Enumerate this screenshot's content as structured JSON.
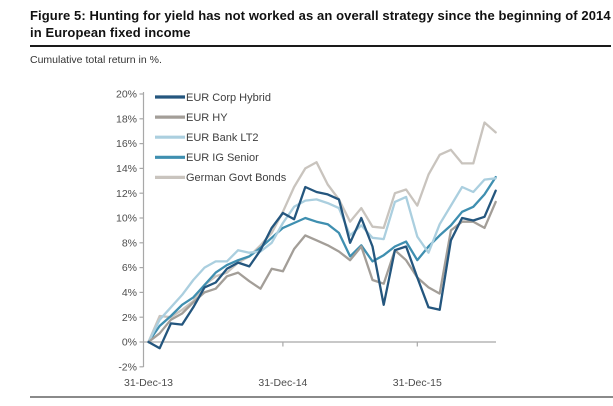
{
  "figure": {
    "title": "Figure 5: Hunting for yield has not worked as an overall strategy since the beginning of 2014 in European fixed income",
    "subtitle": "Cumulative total return in %."
  },
  "chart_data": {
    "type": "line",
    "title": "",
    "xlabel": "",
    "ylabel": "Cumulative total return in %",
    "x_unit": "months since 31-Dec-13, one value per month",
    "x_axis": {
      "tick_labels": [
        "31-Dec-13",
        "31-Dec-14",
        "31-Dec-15"
      ],
      "tick_indices": [
        0,
        12,
        24
      ]
    },
    "y_axis": {
      "ylim": [
        -2,
        20
      ],
      "tick_step": 2,
      "tick_values": [
        20,
        18,
        16,
        14,
        12,
        10,
        8,
        6,
        4,
        2,
        0,
        -2
      ],
      "tick_labels": [
        "20%",
        "18%",
        "16%",
        "14%",
        "12%",
        "10%",
        "8%",
        "6%",
        "4%",
        "2%",
        "0%",
        "-2%"
      ]
    },
    "grid": false,
    "legend_position": "top-left",
    "series": [
      {
        "name": "EUR Corp Hybrid",
        "color": "#24567e",
        "values": [
          0,
          -0.5,
          1.5,
          1.4,
          2.8,
          4.4,
          4.8,
          5.9,
          6.4,
          6.1,
          7.4,
          9.2,
          10.4,
          9.9,
          12.5,
          12.1,
          11.9,
          11.5,
          8.0,
          10.0,
          7.7,
          3.0,
          7.4,
          7.7,
          5.2,
          2.8,
          2.6,
          8.2,
          10.0,
          9.8,
          10.1,
          12.2
        ]
      },
      {
        "name": "EUR HY",
        "color": "#a39e98",
        "values": [
          0,
          0.7,
          1.8,
          2.3,
          3.2,
          4.0,
          4.3,
          5.3,
          5.6,
          4.9,
          4.3,
          5.9,
          5.7,
          7.5,
          8.6,
          8.2,
          7.8,
          7.3,
          6.6,
          7.7,
          5.0,
          4.7,
          7.4,
          6.6,
          5.2,
          4.4,
          3.9,
          9.0,
          9.7,
          9.7,
          9.2,
          11.3
        ]
      },
      {
        "name": "EUR Bank LT2",
        "color": "#abcfdf",
        "values": [
          0,
          1.8,
          2.8,
          3.8,
          5.0,
          6.0,
          6.5,
          6.5,
          7.4,
          7.2,
          7.3,
          8.0,
          9.6,
          10.9,
          11.4,
          11.5,
          11.2,
          10.8,
          8.6,
          9.4,
          8.4,
          8.3,
          11.3,
          11.7,
          8.5,
          7.2,
          9.5,
          11.0,
          12.5,
          12.1,
          13.1,
          13.2
        ]
      },
      {
        "name": "EUR IG Senior",
        "color": "#3f8fb0",
        "values": [
          0,
          1.3,
          2.1,
          3.0,
          3.6,
          4.6,
          5.6,
          6.2,
          6.6,
          6.9,
          7.6,
          8.4,
          9.2,
          9.6,
          10.0,
          9.7,
          9.5,
          8.8,
          6.9,
          7.8,
          6.5,
          7.0,
          7.7,
          8.1,
          6.6,
          7.7,
          8.6,
          9.4,
          10.5,
          10.9,
          11.9,
          13.3
        ]
      },
      {
        "name": "German Govt Bonds",
        "color": "#c9c4be",
        "values": [
          0,
          2.1,
          2.0,
          2.6,
          3.3,
          4.6,
          5.3,
          5.6,
          6.4,
          6.9,
          7.8,
          8.8,
          10.5,
          12.5,
          14.0,
          14.5,
          12.7,
          11.5,
          9.7,
          10.8,
          9.3,
          9.2,
          12.0,
          12.3,
          11.0,
          13.5,
          15.1,
          15.5,
          14.4,
          14.4,
          17.7,
          16.9
        ]
      }
    ]
  }
}
